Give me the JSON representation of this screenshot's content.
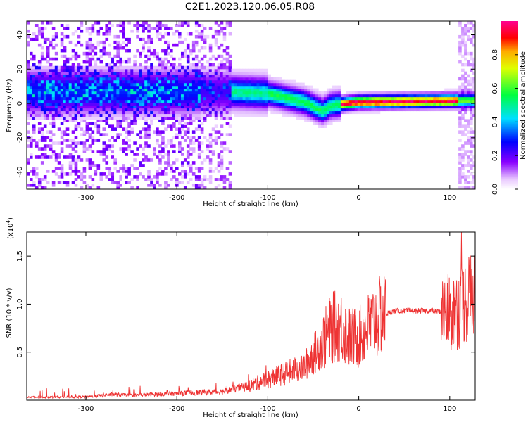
{
  "title": "C2E1.2023.120.06.05.R08",
  "chart_data": [
    {
      "type": "heatmap",
      "xlabel": "Height of straight line (km)",
      "ylabel": "Frequency (Hz)",
      "xlim": [
        -365,
        128
      ],
      "ylim": [
        -50,
        48
      ],
      "xticks": [
        -300,
        -200,
        -100,
        0,
        100
      ],
      "yticks": [
        -40,
        -20,
        0,
        20,
        40
      ],
      "colorbar": {
        "label": "Normalized spectral amplitude",
        "ticks": [
          0.0,
          0.2,
          0.4,
          0.6,
          0.8
        ],
        "range": [
          0,
          1
        ],
        "colormap": "rainbow (white-violet-blue-cyan-green-yellow-red-magenta)"
      },
      "features": {
        "noise_region_x": [
          -365,
          -140
        ],
        "noise_band_center_hz": 7,
        "band_transition": [
          {
            "x": -140,
            "freq_hz": 7
          },
          {
            "x": -100,
            "freq_hz": 6
          },
          {
            "x": -60,
            "freq_hz": 1
          },
          {
            "x": -40,
            "freq_hz": -4
          },
          {
            "x": -30,
            "freq_hz": -1
          },
          {
            "x": 0,
            "freq_hz": 1
          },
          {
            "x": 128,
            "freq_hz": 2
          }
        ],
        "peak_region_x": [
          -20,
          110
        ],
        "peak_amplitude": 0.95
      }
    },
    {
      "type": "line",
      "xlabel": "Height of straight line (km)",
      "ylabel": "SNR (10 * v/v)",
      "multiplier_label": "(x10",
      "multiplier_exp": "4",
      "multiplier_close": ")",
      "xlim": [
        -365,
        128
      ],
      "ylim": [
        0,
        17500
      ],
      "xticks": [
        -300,
        -200,
        -100,
        0,
        100
      ],
      "yticks": [
        5000,
        10000,
        15000
      ],
      "ytick_labels": [
        "0.5",
        "1.0",
        "1.5"
      ],
      "color": "#ee3333",
      "series": [
        {
          "x": [
            -365,
            -300,
            -270,
            -250,
            -200,
            -150,
            -120,
            -100,
            -80,
            -60,
            -40,
            -30,
            -20,
            -10,
            0,
            10,
            20,
            30,
            40,
            60,
            80,
            90,
            100,
            110,
            120,
            128
          ],
          "values": [
            300,
            350,
            600,
            500,
            700,
            900,
            1500,
            2200,
            2800,
            3500,
            6000,
            7500,
            7800,
            6500,
            6500,
            7500,
            8500,
            9000,
            9300,
            9300,
            9300,
            9200,
            9000,
            9500,
            10500,
            11000
          ]
        }
      ]
    }
  ]
}
